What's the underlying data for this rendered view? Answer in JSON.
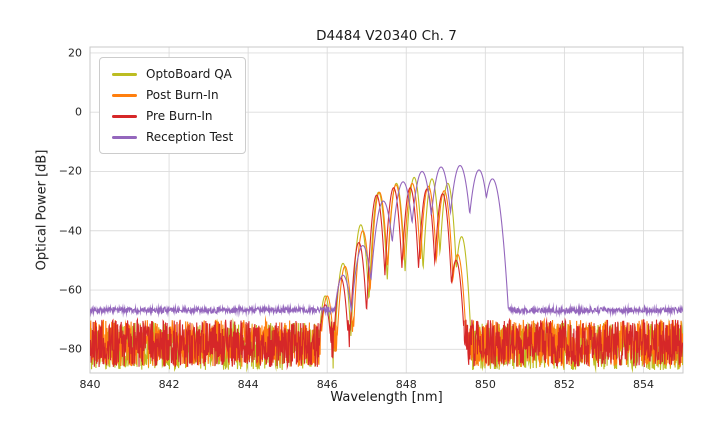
{
  "figure": {
    "background": "#ffffff",
    "grid_color": "#dcdcdc",
    "frame_color": "#c9c9c9",
    "text_color": "#1a1a1a"
  },
  "chart_data": {
    "type": "line",
    "title": "D4484 V20340 Ch. 7",
    "xlabel": "Wavelength [nm]",
    "ylabel": "Optical Power [dB]",
    "xlim": [
      840,
      855
    ],
    "ylim": [
      -88,
      22
    ],
    "xticks": [
      840,
      842,
      844,
      846,
      848,
      850,
      852,
      854
    ],
    "yticks": [
      20,
      0,
      -20,
      -40,
      -60,
      -80
    ],
    "grid": true,
    "legend_position": "upper left",
    "series": [
      {
        "name": "OptoBoard QA",
        "color": "#bcbd22",
        "noise_floor_db": -79,
        "noise_amplitude_db": 8,
        "mode_width_nm": 0.07,
        "modes": [
          [
            845.95,
            -62
          ],
          [
            846.4,
            -51
          ],
          [
            846.85,
            -38
          ],
          [
            847.3,
            -27
          ],
          [
            847.75,
            -24
          ],
          [
            848.2,
            -22
          ],
          [
            848.65,
            -22.5
          ],
          [
            849.05,
            -24
          ],
          [
            849.4,
            -42
          ]
        ]
      },
      {
        "name": "Post Burn-In",
        "color": "#ff7f0e",
        "noise_floor_db": -78,
        "noise_amplitude_db": 8,
        "mode_width_nm": 0.07,
        "modes": [
          [
            846.0,
            -62
          ],
          [
            846.45,
            -52
          ],
          [
            846.9,
            -40
          ],
          [
            847.32,
            -27
          ],
          [
            847.74,
            -24.5
          ],
          [
            848.15,
            -24
          ],
          [
            848.56,
            -25
          ],
          [
            848.96,
            -26.5
          ],
          [
            849.3,
            -48
          ]
        ]
      },
      {
        "name": "Pre Burn-In",
        "color": "#d62728",
        "noise_floor_db": -78,
        "noise_amplitude_db": 8,
        "mode_width_nm": 0.07,
        "modes": [
          [
            845.95,
            -65
          ],
          [
            846.35,
            -56
          ],
          [
            846.8,
            -44
          ],
          [
            847.25,
            -28
          ],
          [
            847.68,
            -25.5
          ],
          [
            848.1,
            -25.5
          ],
          [
            848.52,
            -26
          ],
          [
            848.92,
            -27.5
          ],
          [
            849.26,
            -50
          ]
        ]
      },
      {
        "name": "Reception Test",
        "color": "#9467bd",
        "noise_floor_db": -66.8,
        "noise_amplitude_db": 1.0,
        "mode_width_nm": 0.105,
        "modes": [
          [
            846.4,
            -55
          ],
          [
            846.9,
            -45
          ],
          [
            847.42,
            -30
          ],
          [
            847.92,
            -23.5
          ],
          [
            848.4,
            -20
          ],
          [
            848.88,
            -18.5
          ],
          [
            849.36,
            -18
          ],
          [
            849.84,
            -19.5
          ],
          [
            850.18,
            -22.5
          ]
        ]
      }
    ]
  }
}
